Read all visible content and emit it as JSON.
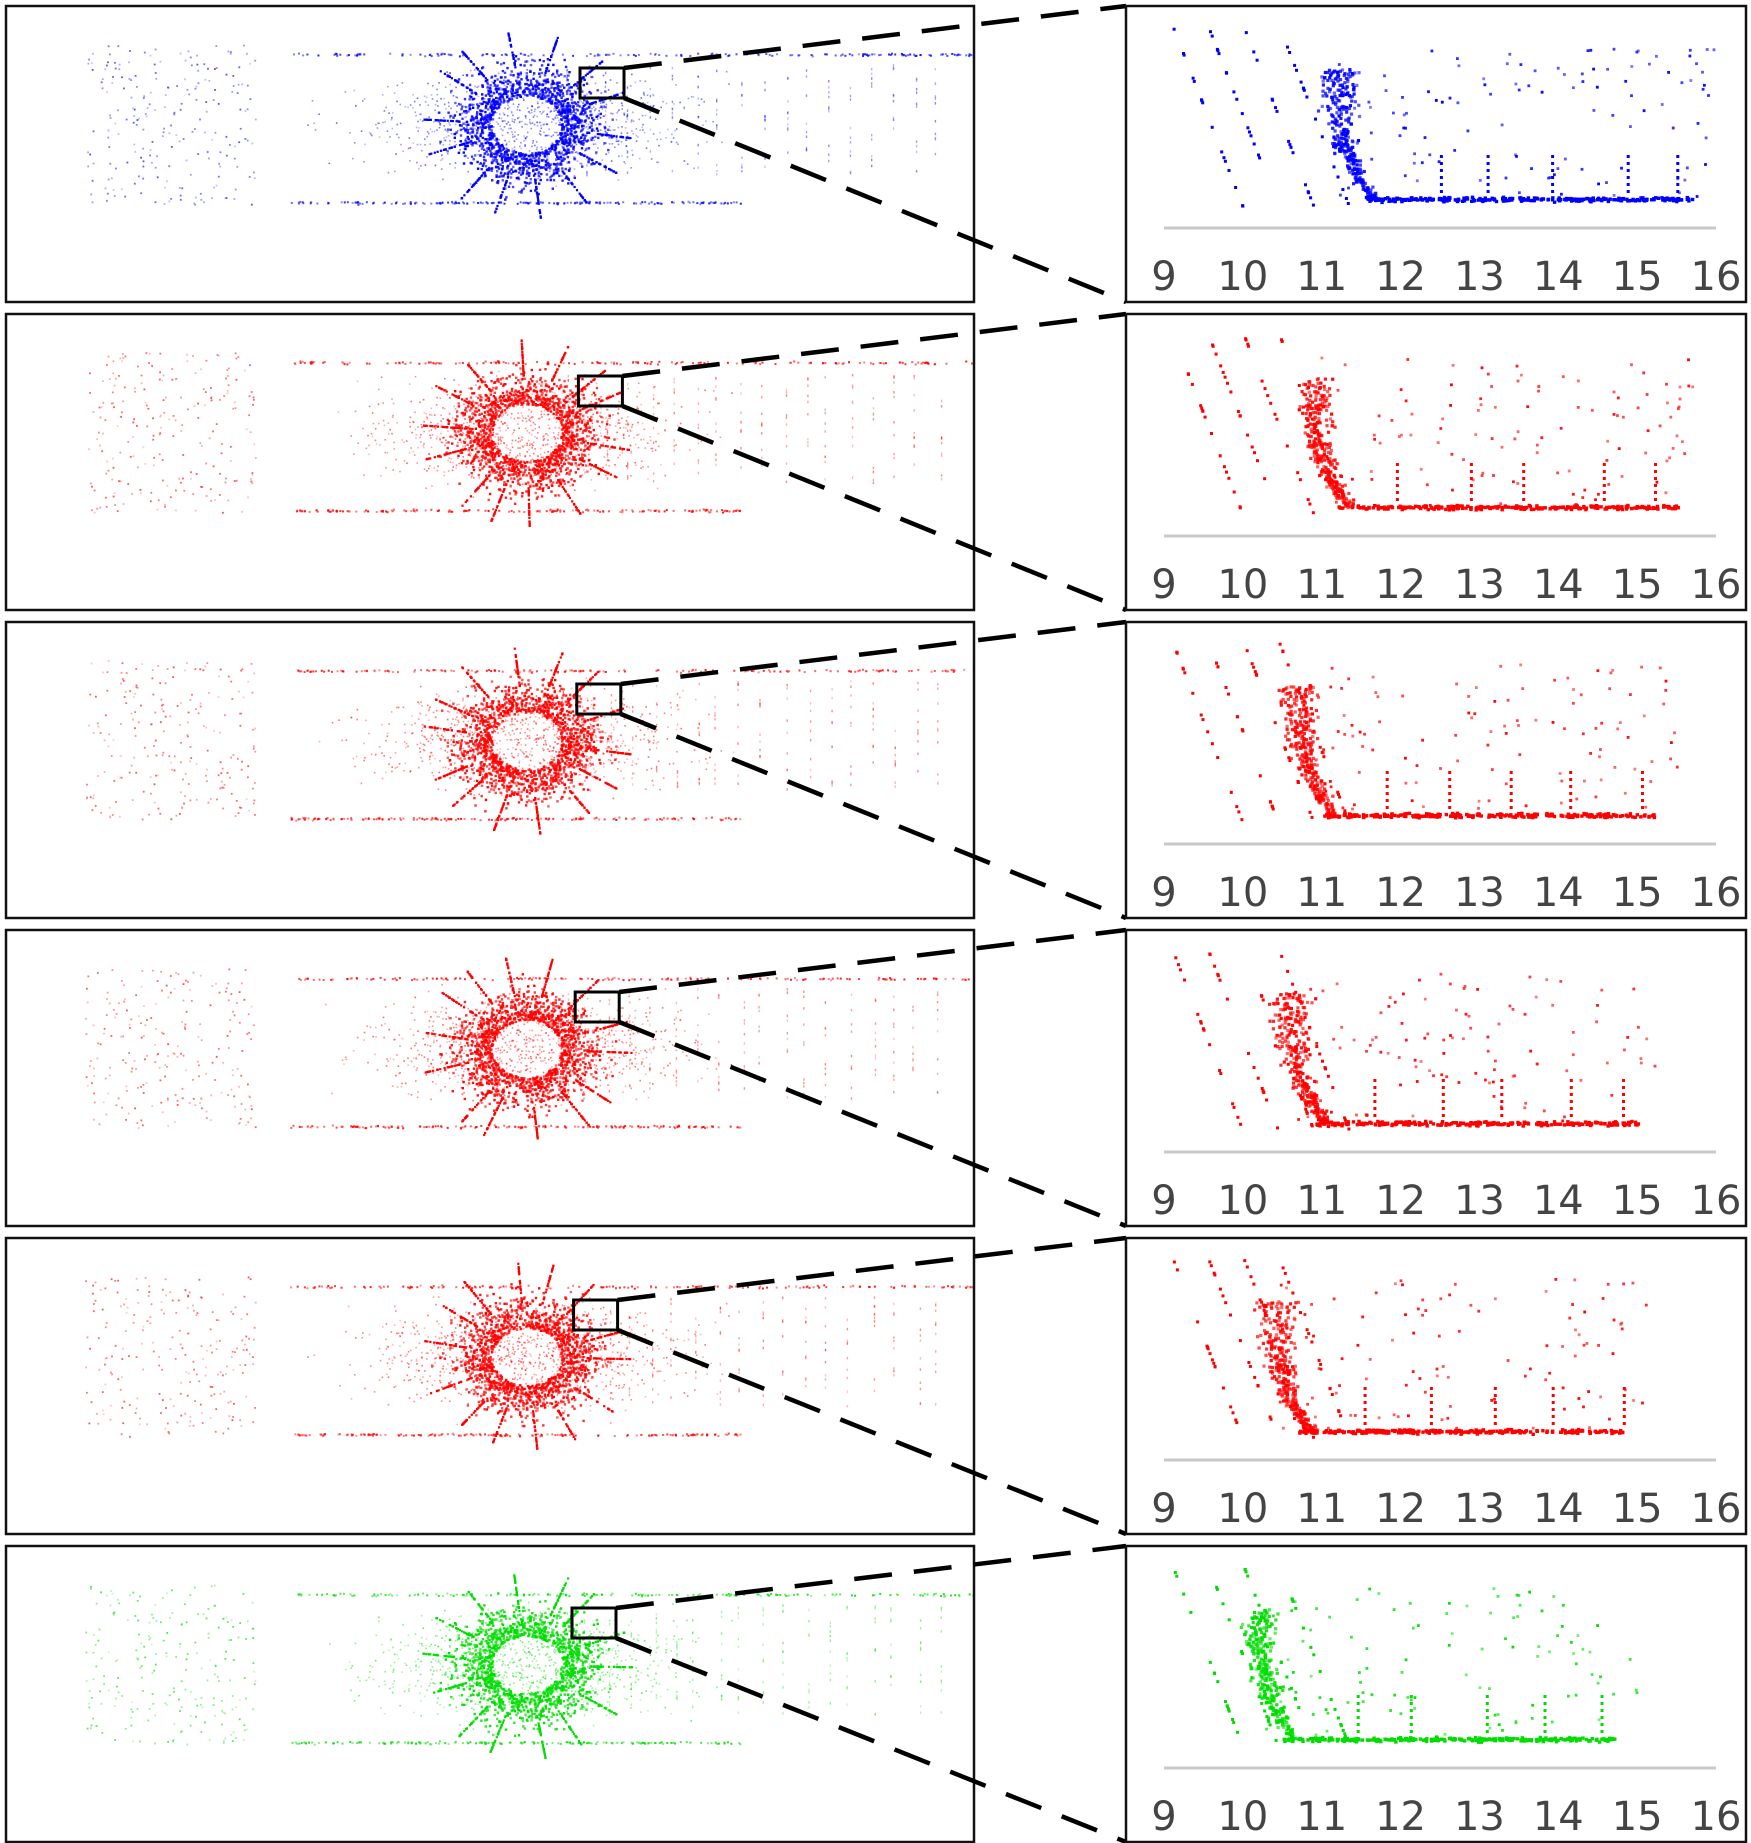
{
  "figure": {
    "panel_colors": [
      "#0000ff",
      "#ff0000",
      "#ff0000",
      "#ff0000",
      "#ff0000",
      "#00dd00"
    ],
    "zoom_lines": "black dashed",
    "layout": "6 rows; left overview point cloud with highlighted rectangle, right zoomed scatter detail"
  },
  "chart_data": [
    {
      "type": "scatter",
      "panel": "row-1",
      "color": "#0000ff",
      "x_ticks": [
        "9",
        "10",
        "11",
        "12",
        "13",
        "14",
        "15",
        "16"
      ],
      "xlim": [
        9,
        16
      ],
      "ground_y": 0.0,
      "curve_x": 11.2,
      "ground_end_x": 15.7,
      "grid": false
    },
    {
      "type": "scatter",
      "panel": "row-2",
      "color": "#ff0000",
      "x_ticks": [
        "9",
        "10",
        "11",
        "12",
        "13",
        "14",
        "15",
        "16"
      ],
      "xlim": [
        9,
        16
      ],
      "ground_y": 0.0,
      "curve_x": 10.9,
      "ground_end_x": 15.5,
      "grid": false
    },
    {
      "type": "scatter",
      "panel": "row-3",
      "color": "#ff0000",
      "x_ticks": [
        "9",
        "10",
        "11",
        "12",
        "13",
        "14",
        "15",
        "16"
      ],
      "xlim": [
        9,
        16
      ],
      "ground_y": 0.0,
      "curve_x": 10.7,
      "ground_end_x": 15.2,
      "grid": false
    },
    {
      "type": "scatter",
      "panel": "row-4",
      "color": "#ff0000",
      "x_ticks": [
        "9",
        "10",
        "11",
        "12",
        "13",
        "14",
        "15",
        "16"
      ],
      "xlim": [
        9,
        16
      ],
      "ground_y": 0.0,
      "curve_x": 10.6,
      "ground_end_x": 15.0,
      "grid": false
    },
    {
      "type": "scatter",
      "panel": "row-5",
      "color": "#ff0000",
      "x_ticks": [
        "9",
        "10",
        "11",
        "12",
        "13",
        "14",
        "15",
        "16"
      ],
      "xlim": [
        9,
        16
      ],
      "ground_y": 0.0,
      "curve_x": 10.4,
      "ground_end_x": 14.8,
      "grid": false
    },
    {
      "type": "scatter",
      "panel": "row-6",
      "color": "#00dd00",
      "x_ticks": [
        "9",
        "10",
        "11",
        "12",
        "13",
        "14",
        "15",
        "16"
      ],
      "xlim": [
        9,
        16
      ],
      "ground_y": 0.0,
      "curve_x": 10.2,
      "ground_end_x": 14.7,
      "grid": false
    }
  ]
}
